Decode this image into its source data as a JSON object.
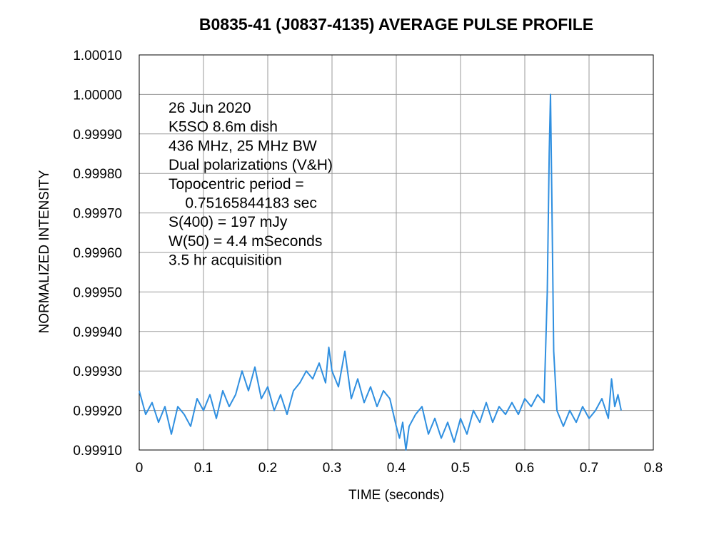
{
  "chart_data": {
    "type": "line",
    "title": "B0835-41 (J0837-4135) AVERAGE PULSE PROFILE",
    "xlabel": "TIME (seconds)",
    "ylabel": "NORMALIZED INTENSITY",
    "xlim": [
      0,
      0.8
    ],
    "ylim": [
      0.9991,
      1.0001
    ],
    "xticks": [
      "0",
      "0.1",
      "0.2",
      "0.3",
      "0.4",
      "0.5",
      "0.6",
      "0.7",
      "0.8"
    ],
    "yticks": [
      "1.00010",
      "1.00000",
      "0.99990",
      "0.99980",
      "0.99970",
      "0.99960",
      "0.99950",
      "0.99940",
      "0.99930",
      "0.99920",
      "0.99910"
    ],
    "grid": true,
    "line_color": "#2f8fe0",
    "annotation_lines": [
      "26 Jun 2020",
      "K5SO 8.6m dish",
      "436 MHz, 25 MHz BW",
      "Dual polarizations (V&H)",
      "Topocentric period =",
      "    0.75165844183 sec",
      "S(400) = 197 mJy",
      "W(50) = 4.4 mSeconds",
      "3.5 hr acquisition"
    ],
    "series": [
      {
        "x": [
          0,
          0.01,
          0.02,
          0.03,
          0.04,
          0.05,
          0.06,
          0.07,
          0.08,
          0.09,
          0.1,
          0.11,
          0.12,
          0.13,
          0.14,
          0.15,
          0.16,
          0.17,
          0.18,
          0.19,
          0.2,
          0.21,
          0.22,
          0.23,
          0.24,
          0.25,
          0.26,
          0.27,
          0.28,
          0.29,
          0.295,
          0.3,
          0.31,
          0.32,
          0.33,
          0.34,
          0.35,
          0.36,
          0.37,
          0.38,
          0.39,
          0.4,
          0.405,
          0.41,
          0.415,
          0.42,
          0.43,
          0.44,
          0.45,
          0.46,
          0.47,
          0.48,
          0.49,
          0.5,
          0.51,
          0.52,
          0.53,
          0.54,
          0.55,
          0.56,
          0.57,
          0.58,
          0.59,
          0.6,
          0.61,
          0.62,
          0.63,
          0.635,
          0.638,
          0.64,
          0.642,
          0.645,
          0.65,
          0.66,
          0.67,
          0.68,
          0.69,
          0.7,
          0.71,
          0.72,
          0.73,
          0.735,
          0.74,
          0.745,
          0.75
        ],
        "y": [
          0.99925,
          0.99919,
          0.99922,
          0.99917,
          0.99921,
          0.99914,
          0.99921,
          0.99919,
          0.99916,
          0.99923,
          0.9992,
          0.99924,
          0.99918,
          0.99925,
          0.99921,
          0.99924,
          0.9993,
          0.99925,
          0.99931,
          0.99923,
          0.99926,
          0.9992,
          0.99924,
          0.99919,
          0.99925,
          0.99927,
          0.9993,
          0.99928,
          0.99932,
          0.99927,
          0.99936,
          0.9993,
          0.99926,
          0.99935,
          0.99923,
          0.99928,
          0.99922,
          0.99926,
          0.99921,
          0.99925,
          0.99923,
          0.99916,
          0.99913,
          0.99917,
          0.9991,
          0.99916,
          0.99919,
          0.99921,
          0.99914,
          0.99918,
          0.99913,
          0.99917,
          0.99912,
          0.99918,
          0.99914,
          0.9992,
          0.99917,
          0.99922,
          0.99917,
          0.99921,
          0.99919,
          0.99922,
          0.99919,
          0.99923,
          0.99921,
          0.99924,
          0.99922,
          0.9995,
          0.99985,
          1.0,
          0.99975,
          0.99935,
          0.9992,
          0.99916,
          0.9992,
          0.99917,
          0.99921,
          0.99918,
          0.9992,
          0.99923,
          0.99918,
          0.99928,
          0.99921,
          0.99924,
          0.9992
        ]
      }
    ]
  }
}
